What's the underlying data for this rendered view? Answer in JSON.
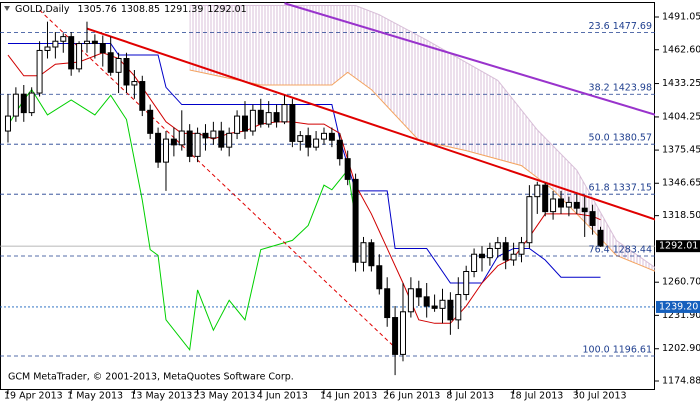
{
  "header": {
    "symbol": "GOLD,Daily",
    "open": 1305.76,
    "high": 1308.85,
    "low": 1291.39,
    "close": 1292.01
  },
  "footer": "GCM MetaTrader, © 2001-2013, MetaQuotes Software Corp.",
  "chart_data": {
    "type": "candlestick",
    "categories": [
      "19 Apr 2013",
      null,
      null,
      null,
      null,
      null,
      null,
      null,
      "1 May 2013",
      null,
      null,
      null,
      null,
      null,
      null,
      null,
      "13 May 2013",
      null,
      null,
      null,
      null,
      null,
      null,
      null,
      "23 May 2013",
      null,
      null,
      null,
      null,
      null,
      null,
      null,
      "4 Jun 2013",
      null,
      null,
      null,
      null,
      null,
      null,
      null,
      "14 Jun 2013",
      null,
      null,
      null,
      null,
      null,
      null,
      null,
      "26 Jun 2013",
      null,
      null,
      null,
      null,
      null,
      null,
      null,
      "8 Jul 2013",
      null,
      null,
      null,
      null,
      null,
      null,
      null,
      "18 Jul 2013",
      null,
      null,
      null,
      null,
      null,
      null,
      null,
      "30 Jul 2013",
      null,
      null,
      null
    ],
    "ohlc": [
      [
        1392,
        1424,
        1382,
        1405
      ],
      [
        1405,
        1430,
        1400,
        1424
      ],
      [
        1424,
        1432,
        1400,
        1408
      ],
      [
        1408,
        1430,
        1405,
        1425
      ],
      [
        1425,
        1470,
        1422,
        1462
      ],
      [
        1462,
        1487,
        1455,
        1465
      ],
      [
        1465,
        1478,
        1455,
        1470
      ],
      [
        1470,
        1477,
        1460,
        1474
      ],
      [
        1474,
        1478,
        1440,
        1446
      ],
      [
        1446,
        1470,
        1443,
        1468
      ],
      [
        1468,
        1487,
        1460,
        1470
      ],
      [
        1470,
        1476,
        1455,
        1468
      ],
      [
        1468,
        1475,
        1448,
        1460
      ],
      [
        1460,
        1474,
        1440,
        1443
      ],
      [
        1443,
        1460,
        1425,
        1455
      ],
      [
        1455,
        1460,
        1425,
        1432
      ],
      [
        1432,
        1445,
        1420,
        1435
      ],
      [
        1435,
        1440,
        1405,
        1410
      ],
      [
        1410,
        1415,
        1385,
        1390
      ],
      [
        1390,
        1395,
        1360,
        1365
      ],
      [
        1365,
        1392,
        1340,
        1385
      ],
      [
        1385,
        1395,
        1370,
        1380
      ],
      [
        1380,
        1410,
        1375,
        1392
      ],
      [
        1392,
        1398,
        1365,
        1370
      ],
      [
        1370,
        1395,
        1365,
        1390
      ],
      [
        1390,
        1398,
        1375,
        1386
      ],
      [
        1386,
        1400,
        1380,
        1392
      ],
      [
        1392,
        1400,
        1375,
        1378
      ],
      [
        1378,
        1395,
        1370,
        1390
      ],
      [
        1390,
        1410,
        1385,
        1405
      ],
      [
        1405,
        1418,
        1385,
        1392
      ],
      [
        1392,
        1415,
        1388,
        1410
      ],
      [
        1410,
        1420,
        1395,
        1398
      ],
      [
        1398,
        1418,
        1395,
        1408
      ],
      [
        1408,
        1415,
        1395,
        1400
      ],
      [
        1400,
        1423,
        1398,
        1415
      ],
      [
        1415,
        1420,
        1378,
        1383
      ],
      [
        1383,
        1392,
        1375,
        1388
      ],
      [
        1388,
        1395,
        1370,
        1378
      ],
      [
        1378,
        1392,
        1375,
        1385
      ],
      [
        1385,
        1395,
        1380,
        1390
      ],
      [
        1390,
        1395,
        1378,
        1384
      ],
      [
        1384,
        1390,
        1362,
        1368
      ],
      [
        1368,
        1375,
        1345,
        1350
      ],
      [
        1350,
        1355,
        1270,
        1278
      ],
      [
        1278,
        1300,
        1270,
        1295
      ],
      [
        1295,
        1298,
        1270,
        1275
      ],
      [
        1275,
        1285,
        1250,
        1255
      ],
      [
        1255,
        1265,
        1222,
        1230
      ],
      [
        1230,
        1240,
        1180,
        1198
      ],
      [
        1198,
        1260,
        1192,
        1235
      ],
      [
        1235,
        1265,
        1230,
        1255
      ],
      [
        1255,
        1262,
        1240,
        1248
      ],
      [
        1248,
        1260,
        1230,
        1240
      ],
      [
        1240,
        1250,
        1235,
        1238
      ],
      [
        1238,
        1255,
        1225,
        1245
      ],
      [
        1245,
        1252,
        1215,
        1228
      ],
      [
        1228,
        1265,
        1220,
        1250
      ],
      [
        1250,
        1275,
        1245,
        1270
      ],
      [
        1270,
        1290,
        1265,
        1285
      ],
      [
        1285,
        1292,
        1270,
        1282
      ],
      [
        1282,
        1295,
        1275,
        1290
      ],
      [
        1290,
        1300,
        1282,
        1295
      ],
      [
        1295,
        1300,
        1272,
        1280
      ],
      [
        1280,
        1295,
        1275,
        1285
      ],
      [
        1285,
        1300,
        1278,
        1295
      ],
      [
        1295,
        1345,
        1290,
        1335
      ],
      [
        1335,
        1348,
        1320,
        1345
      ],
      [
        1345,
        1347,
        1318,
        1322
      ],
      [
        1322,
        1340,
        1315,
        1333
      ],
      [
        1333,
        1340,
        1320,
        1326
      ],
      [
        1326,
        1335,
        1318,
        1330
      ],
      [
        1330,
        1337,
        1320,
        1325
      ],
      [
        1325,
        1335,
        1300,
        1322
      ],
      [
        1322,
        1328,
        1302,
        1310
      ],
      [
        1305.76,
        1308.85,
        1291.39,
        1292.01
      ]
    ],
    "xlim": [
      -1.01,
      81.9
    ],
    "ylim": [
      1167.07,
      1504.08
    ],
    "yticks": [
      1491.05,
      {
        "value": 1462.6,
        "label": "1462.60"
      },
      1433.25,
      1404.25,
      1375.45,
      1346.65,
      {
        "value": 1318.5,
        "label": "1318.50"
      },
      {
        "value": 1260.7,
        "label": "1260.70"
      },
      {
        "value": 1231.9,
        "label": "1231.90"
      },
      {
        "value": 1202.9,
        "label": "1202.90"
      },
      1174.88
    ],
    "grid": false,
    "cloud": {
      "color": "#d8bfd8",
      "upper": {
        "color": "#d8bfd8",
        "x": [
          23,
          44,
          47,
          53,
          62,
          67,
          72,
          77,
          82
        ],
        "values": [
          1501,
          1501,
          1493,
          1471,
          1436,
          1393,
          1358,
          1297,
          1273
        ]
      },
      "lower": {
        "color": "#f4a460",
        "x": [
          23,
          32,
          41,
          43,
          46,
          52,
          58,
          65,
          69,
          74,
          77,
          82
        ],
        "values": [
          1445,
          1432,
          1432,
          1443,
          1428,
          1384,
          1375,
          1362,
          1341,
          1306,
          1284,
          1270
        ]
      }
    },
    "indicators": [
      {
        "color": "#00d000",
        "x": [
          0,
          2,
          3,
          5,
          8,
          11,
          13,
          15,
          17,
          18,
          19,
          20,
          23,
          24,
          26,
          28,
          30,
          32,
          36,
          38,
          40,
          41,
          43,
          44
        ],
        "values": [
          1397,
          1419,
          1428,
          1406,
          1419,
          1406,
          1423,
          1402,
          1332,
          1289,
          1284,
          1228,
          1202,
          1254,
          1219,
          1245,
          1228,
          1289,
          1297,
          1310,
          1345,
          1341,
          1358,
          1315
        ]
      },
      {
        "color": "#0000c8",
        "x": [
          0,
          13,
          14,
          19,
          20,
          22,
          41,
          42,
          44,
          48,
          49,
          53,
          56,
          60,
          62,
          64,
          66,
          68,
          70,
          75
        ],
        "values": [
          1468,
          1468,
          1458,
          1458,
          1430,
          1415,
          1415,
          1385,
          1340,
          1340,
          1290,
          1290,
          1260,
          1260,
          1283,
          1290,
          1290,
          1280,
          1265,
          1265
        ]
      },
      {
        "color": "#d00000",
        "x": [
          0,
          2,
          4,
          6,
          9,
          12,
          14,
          16,
          18,
          20,
          22,
          24,
          26,
          28,
          30,
          32,
          34,
          36,
          38,
          40,
          42,
          44,
          46,
          48,
          50,
          52,
          54,
          56,
          58,
          60,
          62,
          64,
          66,
          68,
          70,
          72,
          74,
          75
        ],
        "values": [
          1458,
          1440,
          1440,
          1450,
          1452,
          1460,
          1455,
          1440,
          1420,
          1400,
          1390,
          1390,
          1385,
          1390,
          1392,
          1398,
          1400,
          1400,
          1398,
          1398,
          1390,
          1345,
          1320,
          1290,
          1260,
          1228,
          1225,
          1225,
          1240,
          1260,
          1275,
          1282,
          1300,
          1320,
          1320,
          1320,
          1318,
          1315
        ]
      }
    ],
    "trendlines": [
      {
        "color": "#e00000",
        "width": 2,
        "dashed": false,
        "x": [
          10,
          82
        ],
        "values": [
          1481,
          1315
        ]
      },
      {
        "color": "#9933cc",
        "width": 2,
        "dashed": false,
        "x": [
          35,
          82
        ],
        "values": [
          1503,
          1406
        ]
      },
      {
        "color": "#e00000",
        "width": 1,
        "dashed": true,
        "x": [
          4,
          49.6
        ],
        "values": [
          1497,
          1200
        ]
      }
    ],
    "fibonacci": {
      "color": "#1f3f8f",
      "levels": [
        {
          "value": 1477.69,
          "label": "23.6 1477.69"
        },
        {
          "value": 1423.98,
          "label": "38.2 1423.98"
        },
        {
          "value": 1380.57,
          "label": "50.0 1380.57"
        },
        {
          "value": 1337.15,
          "label": "61.8 1337.15"
        },
        {
          "value": 1283.44,
          "label": "76.4 1283.44"
        },
        {
          "value": 1196.61,
          "label": "100.0 1196.61"
        }
      ]
    },
    "price_lines": [
      {
        "value": 1292.01,
        "color": "#000000",
        "line": "#a0a0a0"
      },
      {
        "value": 1239.2,
        "label": "1239.20",
        "color": "#1560bd",
        "line": "#1560bd"
      }
    ]
  }
}
